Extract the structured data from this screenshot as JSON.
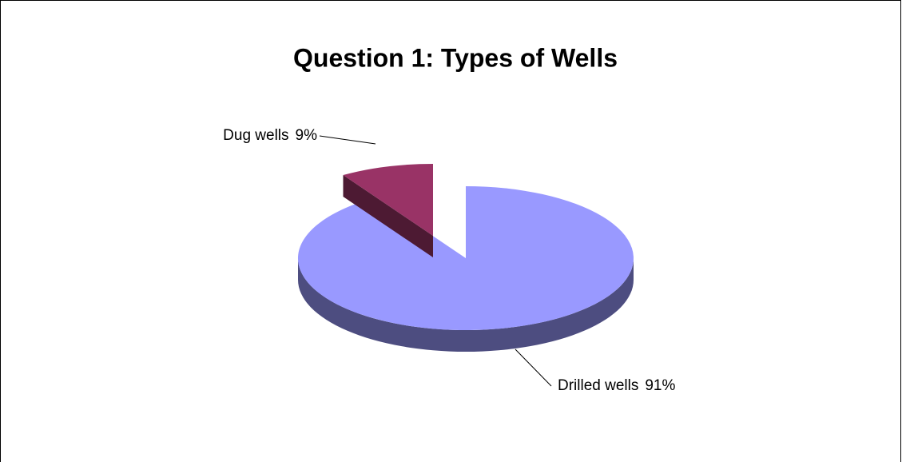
{
  "chart_data": {
    "type": "pie",
    "title": "Question 1:  Types of Wells",
    "categories": [
      "Drilled wells",
      "Dug wells"
    ],
    "values": [
      91,
      9
    ],
    "value_labels": [
      "91%",
      "9%"
    ],
    "colors": [
      "#9999ff",
      "#993366"
    ],
    "side_colors": [
      "#4d4d80",
      "#4d1a33"
    ]
  }
}
